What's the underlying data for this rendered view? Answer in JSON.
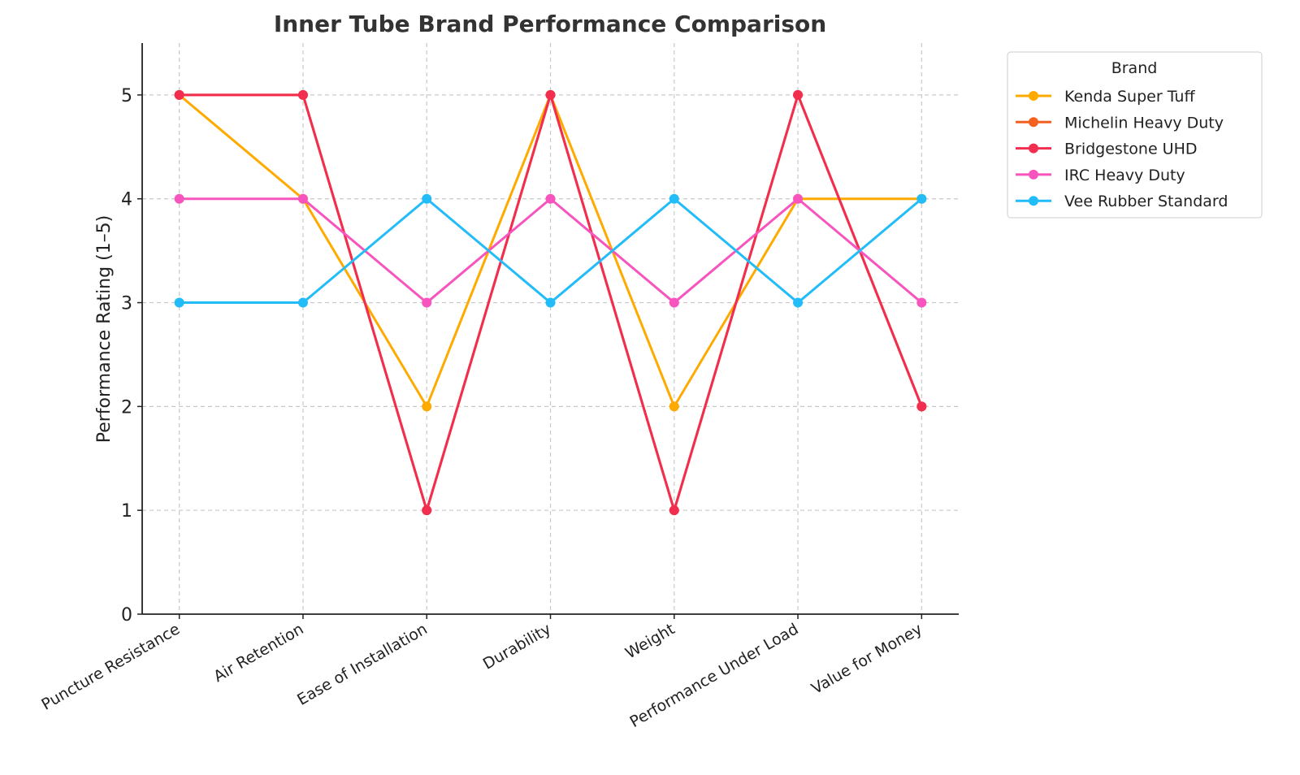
{
  "chart_data": {
    "type": "line",
    "title": "Inner Tube Brand Performance Comparison",
    "xlabel": "",
    "ylabel": "Performance Rating (1–5)",
    "ylim": [
      0,
      5.5
    ],
    "yticks": [
      0,
      1,
      2,
      3,
      4,
      5
    ],
    "grid": true,
    "legend_title": "Brand",
    "legend_placement": "outside-top-right",
    "categories": [
      "Puncture Resistance",
      "Air Retention",
      "Ease of Installation",
      "Durability",
      "Weight",
      "Performance Under Load",
      "Value for Money"
    ],
    "series": [
      {
        "name": "Kenda Super Tuff",
        "color": "#FFAA00",
        "values": [
          5,
          4,
          2,
          5,
          2,
          4,
          4
        ]
      },
      {
        "name": "Michelin Heavy Duty",
        "color": "#F4601E",
        "values": [
          5,
          5,
          1,
          5,
          1,
          5,
          2
        ]
      },
      {
        "name": "Bridgestone UHD",
        "color": "#F22E50",
        "values": [
          5,
          5,
          1,
          5,
          1,
          5,
          2
        ]
      },
      {
        "name": "IRC Heavy Duty",
        "color": "#F755BD",
        "values": [
          4,
          4,
          3,
          4,
          3,
          4,
          3
        ]
      },
      {
        "name": "Vee Rubber Standard",
        "color": "#22BDF8",
        "values": [
          3,
          3,
          4,
          3,
          4,
          3,
          4
        ]
      }
    ]
  }
}
